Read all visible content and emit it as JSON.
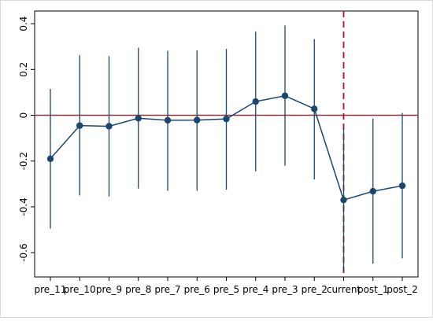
{
  "chart_data": {
    "type": "line",
    "title": "",
    "xlabel": "",
    "ylabel": "",
    "categories": [
      "pre_11",
      "pre_10",
      "pre_9",
      "pre_8",
      "pre_7",
      "pre_6",
      "pre_5",
      "pre_4",
      "pre_3",
      "pre_2",
      "current",
      "post_1",
      "post_2"
    ],
    "series": [
      {
        "values": [
          -0.19,
          -0.045,
          -0.048,
          -0.013,
          -0.022,
          -0.021,
          -0.016,
          0.06,
          0.085,
          0.028,
          -0.37,
          -0.332,
          -0.308
        ],
        "lower": [
          -0.495,
          -0.35,
          -0.355,
          -0.32,
          -0.33,
          -0.33,
          -0.325,
          -0.245,
          -0.22,
          -0.28,
          -0.685,
          -0.648,
          -0.625
        ],
        "upper": [
          0.115,
          0.262,
          0.258,
          0.295,
          0.282,
          0.283,
          0.29,
          0.365,
          0.392,
          0.333,
          -0.055,
          -0.015,
          0.01
        ],
        "color": "#1a476f"
      }
    ],
    "yticks": [
      -0.6,
      -0.4,
      -0.2,
      0,
      0.2,
      0.4
    ],
    "ytick_labels": [
      "-0.6",
      "-0.4",
      "-0.2",
      "0",
      "0.2",
      "0.4"
    ],
    "ylim": [
      -0.7,
      0.41
    ],
    "hline": {
      "y": 0,
      "color": "#90353b",
      "style": "solid"
    },
    "vline": {
      "category": "current",
      "color": "#c10534",
      "style": "dashed"
    },
    "grid": false,
    "colors": {
      "plot_background": "#ffffff",
      "frame": "#000000",
      "series": "#1a476f"
    }
  }
}
